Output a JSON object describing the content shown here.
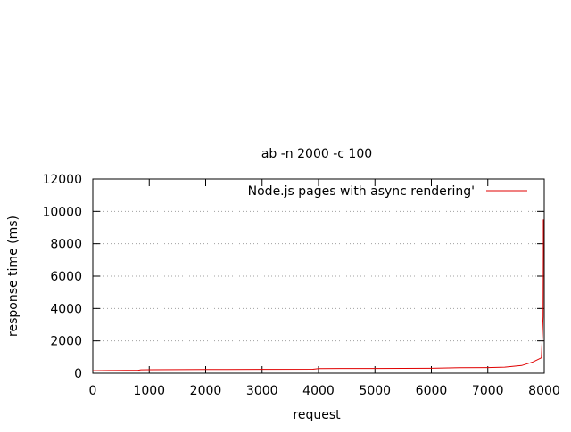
{
  "chart_data": {
    "type": "line",
    "title": "ab -n 2000 -c 100",
    "xlabel": "request",
    "ylabel": "response time (ms)",
    "xlim": [
      0,
      8000
    ],
    "ylim": [
      0,
      12000
    ],
    "xticks": [
      0,
      1000,
      2000,
      3000,
      4000,
      5000,
      6000,
      7000,
      8000
    ],
    "yticks": [
      0,
      2000,
      4000,
      6000,
      8000,
      10000,
      12000
    ],
    "grid": "horizontal-dotted",
    "legend_position": "top-right",
    "series": [
      {
        "name": "Node.js pages with async rendering'",
        "color": "#e00000",
        "x": [
          0,
          300,
          600,
          800,
          850,
          1000,
          2000,
          3000,
          3900,
          4000,
          5000,
          6000,
          6300,
          6500,
          7000,
          7300,
          7600,
          7800,
          7950,
          7980,
          8000,
          8010,
          8015
        ],
        "y": [
          160,
          170,
          175,
          180,
          215,
          220,
          230,
          240,
          245,
          290,
          300,
          310,
          330,
          340,
          350,
          380,
          480,
          700,
          950,
          3500,
          7500,
          9000,
          9500
        ]
      }
    ]
  }
}
